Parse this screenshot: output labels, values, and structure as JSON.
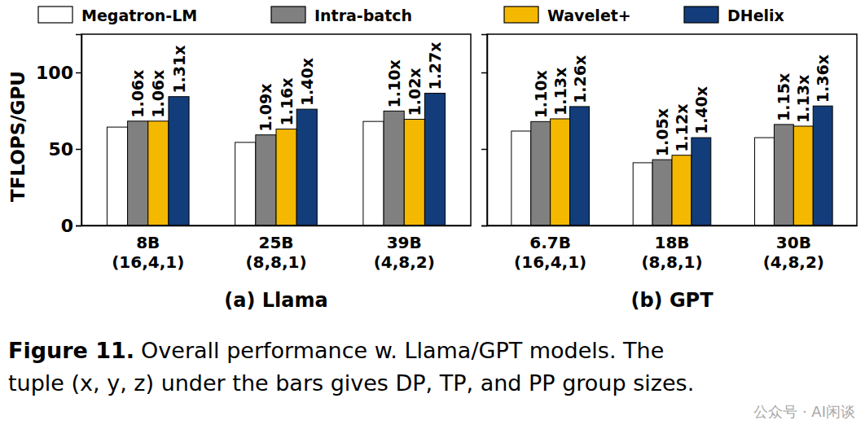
{
  "chart_data": [
    {
      "type": "bar",
      "title": "(a) Llama",
      "ylabel": "TFLOPS/GPU",
      "categories": [
        "8B\n(16,4,1)",
        "25B\n(8,8,1)",
        "39B\n(4,8,2)"
      ],
      "series": [
        {
          "name": "Megatron-LM",
          "color": "#ffffff",
          "values": [
            64.3,
            54.3,
            68.0
          ]
        },
        {
          "name": "Intra-batch",
          "color": "#808080",
          "values": [
            68.2,
            59.2,
            74.8
          ],
          "speedup_labels": [
            "1.06x",
            "1.09x",
            "1.10x"
          ]
        },
        {
          "name": "Wavelet+",
          "color": "#f5b800",
          "values": [
            68.2,
            63.0,
            69.4
          ],
          "speedup_labels": [
            "1.06x",
            "1.16x",
            "1.02x"
          ]
        },
        {
          "name": "DHelix",
          "color": "#123d7a",
          "values": [
            84.2,
            76.0,
            86.4
          ],
          "speedup_labels": [
            "1.31x",
            "1.40x",
            "1.27x"
          ]
        }
      ],
      "ylim": [
        0,
        125
      ],
      "yticks": [
        0,
        50,
        100
      ],
      "legend": "top",
      "tick_labels": true
    },
    {
      "type": "bar",
      "title": "(b) GPT",
      "categories": [
        "6.7B\n(16,4,1)",
        "18B\n(8,8,1)",
        "30B\n(4,8,2)"
      ],
      "series": [
        {
          "name": "Megatron-LM",
          "color": "#ffffff",
          "values": [
            61.7,
            41.0,
            57.4
          ]
        },
        {
          "name": "Intra-batch",
          "color": "#808080",
          "values": [
            67.9,
            43.0,
            66.0
          ],
          "speedup_labels": [
            "1.10x",
            "1.05x",
            "1.15x"
          ]
        },
        {
          "name": "Wavelet+",
          "color": "#f5b800",
          "values": [
            69.7,
            45.9,
            64.9
          ],
          "speedup_labels": [
            "1.13x",
            "1.12x",
            "1.13x"
          ]
        },
        {
          "name": "DHelix",
          "color": "#123d7a",
          "values": [
            77.7,
            57.4,
            78.1
          ],
          "speedup_labels": [
            "1.26x",
            "1.40x",
            "1.36x"
          ]
        }
      ],
      "ylim": [
        0,
        125
      ],
      "yticks": [
        0,
        50,
        100
      ],
      "tick_labels": "x"
    }
  ],
  "caption": {
    "label": "Figure 11.",
    "lines": [
      "Overall performance w. Llama/GPT models. The",
      "tuple (x, y, z) under the bars gives DP, TP, and PP group sizes."
    ]
  },
  "watermark": "公众号 · AI闲谈"
}
